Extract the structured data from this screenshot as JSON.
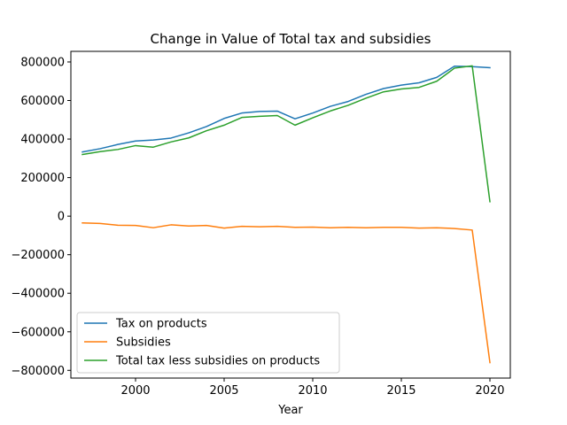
{
  "chart_data": {
    "type": "line",
    "title": "Change in Value of Total tax and subsidies",
    "xlabel": "Year",
    "ylabel": "",
    "xlim": [
      1996.35,
      2021.15
    ],
    "ylim": [
      -840000,
      855000
    ],
    "x_ticks": [
      2000,
      2005,
      2010,
      2015,
      2020
    ],
    "y_ticks": [
      800000,
      600000,
      400000,
      200000,
      0,
      -200000,
      -400000,
      -600000,
      -800000
    ],
    "grid": false,
    "legend_position": "lower-left",
    "x": [
      1997,
      1998,
      1999,
      2000,
      2001,
      2002,
      2003,
      2004,
      2005,
      2006,
      2007,
      2008,
      2009,
      2010,
      2011,
      2012,
      2013,
      2014,
      2015,
      2016,
      2017,
      2018,
      2019,
      2020
    ],
    "series": [
      {
        "name": "Tax on products",
        "color": "#1f77b4",
        "values": [
          333000,
          350000,
          372000,
          390000,
          395000,
          405000,
          432000,
          465000,
          507000,
          535000,
          543000,
          545000,
          505000,
          535000,
          570000,
          595000,
          632000,
          662000,
          680000,
          692000,
          720000,
          778000,
          776000,
          770000
        ]
      },
      {
        "name": "Subsidies",
        "color": "#ff7f0e",
        "values": [
          -35000,
          -38000,
          -47000,
          -48000,
          -60000,
          -45000,
          -51000,
          -48000,
          -62000,
          -53000,
          -55000,
          -53000,
          -58000,
          -57000,
          -60000,
          -58000,
          -60000,
          -58000,
          -58000,
          -62000,
          -60000,
          -64000,
          -72000,
          -760000
        ]
      },
      {
        "name": "Total tax less subsidies on products",
        "color": "#2ca02c",
        "values": [
          320000,
          335000,
          346000,
          366000,
          358000,
          385000,
          406000,
          443000,
          472000,
          512000,
          518000,
          522000,
          472000,
          510000,
          546000,
          575000,
          612000,
          645000,
          660000,
          668000,
          700000,
          768000,
          780000,
          75000
        ]
      }
    ]
  }
}
